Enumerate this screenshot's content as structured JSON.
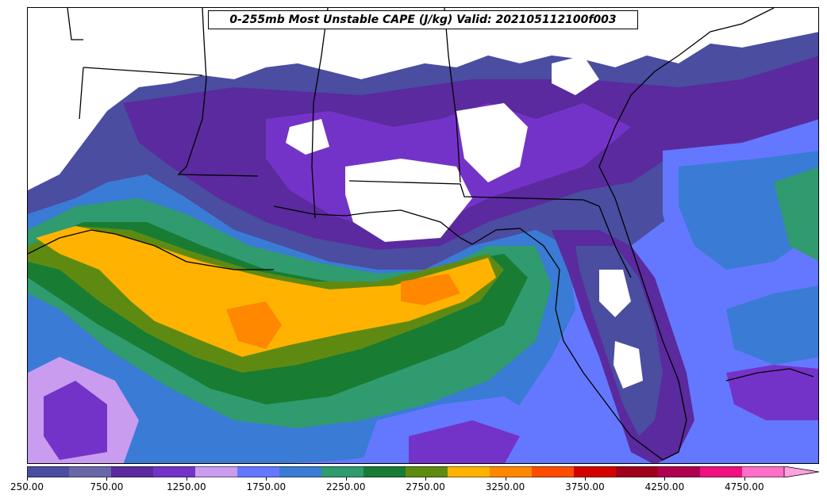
{
  "title": "0-255mb Most Unstable CAPE (J/kg) Valid: 202105112100f003",
  "colorbar": {
    "levels": [
      250,
      500,
      750,
      1000,
      1250,
      1500,
      1750,
      2000,
      2250,
      2500,
      2750,
      3000,
      3250,
      3500,
      3750,
      4000,
      4250,
      4500,
      4750,
      5000
    ],
    "colors": [
      "#4a4da0",
      "#6a67a8",
      "#5a2a9e",
      "#7433c8",
      "#c99cf0",
      "#6478ff",
      "#3a7bd5",
      "#2f9b6e",
      "#187c33",
      "#5f8a12",
      "#ffb300",
      "#ff8800",
      "#ff4d00",
      "#d40000",
      "#a0001c",
      "#b00050",
      "#f01080",
      "#ff6fc8",
      "#ffa0e0"
    ],
    "extend": "max",
    "tick_labels": [
      "250.00",
      "750.00",
      "1250.00",
      "1750.00",
      "2250.00",
      "2750.00",
      "3250.00",
      "3750.00",
      "4250.00",
      "4750.00"
    ],
    "tick_values": [
      250,
      750,
      1250,
      1750,
      2250,
      2750,
      3250,
      3750,
      4250,
      4750
    ]
  }
}
